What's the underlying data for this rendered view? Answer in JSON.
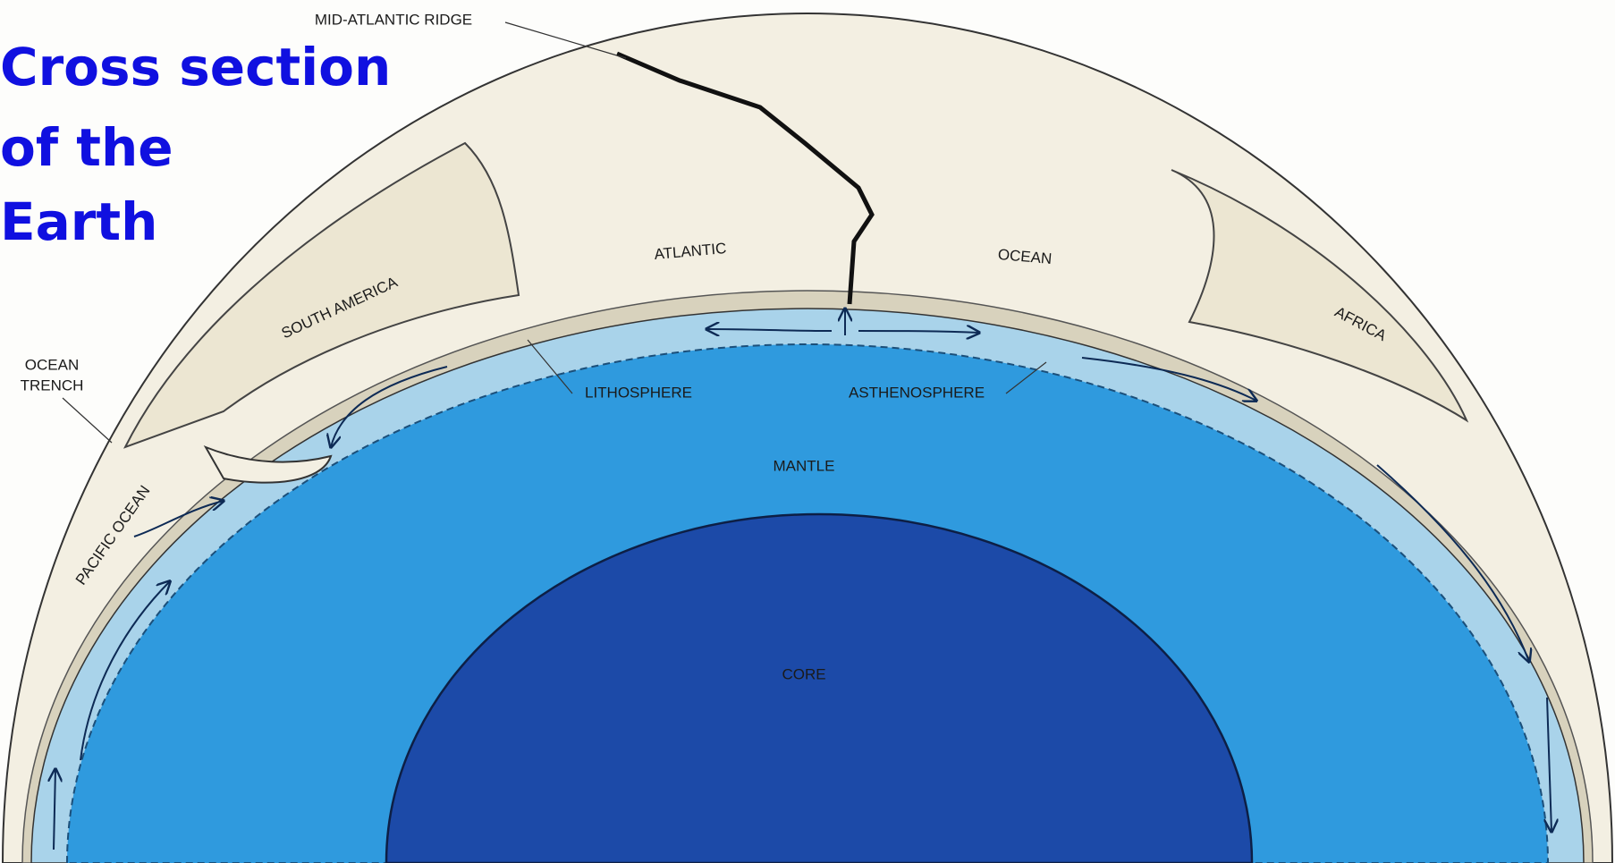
{
  "title": {
    "lines": [
      "Cross section",
      "of the",
      "Earth"
    ]
  },
  "labels": {
    "ridge": "MID-ATLANTIC RIDGE",
    "trench": [
      "OCEAN",
      "TRENCH"
    ],
    "south_america": "SOUTH AMERICA",
    "atlantic": "ATLANTIC",
    "ocean": "OCEAN",
    "africa": "AFRICA",
    "pacific": "PACIFIC OCEAN",
    "lithosphere": "LITHOSPHERE",
    "asthenosphere": "ASTHENOSPHERE",
    "mantle": "MANTLE",
    "core": "CORE"
  }
}
